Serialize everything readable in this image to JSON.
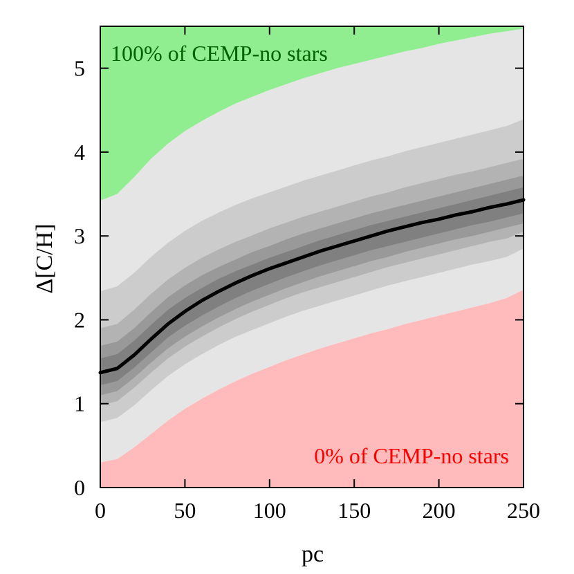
{
  "chart_data": {
    "type": "area",
    "xlabel": "pc",
    "ylabel": "Δ[C/H]",
    "xlim": [
      0,
      250
    ],
    "ylim": [
      0,
      5.5
    ],
    "xticks": [
      0,
      50,
      100,
      150,
      200,
      250
    ],
    "yticks": [
      0,
      1,
      2,
      3,
      4,
      5
    ],
    "grid": false,
    "annotations": {
      "top": "100% of CEMP-no stars",
      "bottom": "0% of CEMP-no stars"
    },
    "colors": {
      "top_region": "#90ee90",
      "bottom_region": "#ffbbbb",
      "top_text": "#006400",
      "bottom_text": "#ff0000",
      "bands": [
        "#e5e5e5",
        "#cccccc",
        "#b3b3b3",
        "#999999",
        "#808080"
      ],
      "median": "#000000"
    },
    "x": [
      0,
      10,
      20,
      30,
      40,
      50,
      60,
      70,
      80,
      90,
      100,
      110,
      120,
      130,
      140,
      150,
      160,
      170,
      180,
      190,
      200,
      210,
      220,
      230,
      240,
      250
    ],
    "median": [
      1.37,
      1.42,
      1.58,
      1.77,
      1.95,
      2.1,
      2.23,
      2.34,
      2.44,
      2.53,
      2.61,
      2.68,
      2.75,
      2.82,
      2.88,
      2.94,
      3.0,
      3.06,
      3.11,
      3.16,
      3.2,
      3.25,
      3.29,
      3.34,
      3.38,
      3.43
    ],
    "bands": [
      {
        "name": "outer",
        "lower": [
          0.3,
          0.34,
          0.48,
          0.64,
          0.8,
          0.94,
          1.06,
          1.17,
          1.27,
          1.36,
          1.44,
          1.52,
          1.59,
          1.66,
          1.72,
          1.78,
          1.84,
          1.89,
          1.95,
          2.0,
          2.05,
          2.1,
          2.15,
          2.2,
          2.26,
          2.36
        ],
        "upper": [
          3.42,
          3.5,
          3.7,
          3.92,
          4.1,
          4.25,
          4.37,
          4.48,
          4.58,
          4.66,
          4.74,
          4.81,
          4.88,
          4.94,
          5.0,
          5.05,
          5.1,
          5.15,
          5.2,
          5.24,
          5.29,
          5.33,
          5.37,
          5.41,
          5.44,
          5.47
        ]
      },
      {
        "name": "band2",
        "lower": [
          0.78,
          0.83,
          0.98,
          1.16,
          1.33,
          1.47,
          1.59,
          1.7,
          1.8,
          1.88,
          1.96,
          2.04,
          2.11,
          2.17,
          2.23,
          2.29,
          2.35,
          2.41,
          2.46,
          2.51,
          2.56,
          2.61,
          2.66,
          2.7,
          2.75,
          2.85
        ],
        "upper": [
          2.34,
          2.4,
          2.56,
          2.75,
          2.92,
          3.06,
          3.18,
          3.28,
          3.37,
          3.45,
          3.52,
          3.59,
          3.66,
          3.72,
          3.78,
          3.84,
          3.9,
          3.95,
          4.01,
          4.06,
          4.11,
          4.16,
          4.21,
          4.26,
          4.31,
          4.39
        ]
      },
      {
        "name": "band3",
        "lower": [
          0.98,
          1.03,
          1.19,
          1.37,
          1.54,
          1.68,
          1.8,
          1.91,
          2.01,
          2.1,
          2.18,
          2.26,
          2.33,
          2.39,
          2.45,
          2.51,
          2.57,
          2.63,
          2.68,
          2.73,
          2.78,
          2.83,
          2.88,
          2.93,
          2.97,
          3.05
        ],
        "upper": [
          1.9,
          1.95,
          2.12,
          2.31,
          2.48,
          2.62,
          2.74,
          2.84,
          2.93,
          3.01,
          3.09,
          3.16,
          3.23,
          3.29,
          3.35,
          3.41,
          3.47,
          3.52,
          3.58,
          3.63,
          3.68,
          3.73,
          3.77,
          3.82,
          3.87,
          3.92
        ]
      },
      {
        "name": "band4",
        "lower": [
          1.1,
          1.15,
          1.31,
          1.49,
          1.66,
          1.8,
          1.92,
          2.03,
          2.13,
          2.22,
          2.3,
          2.38,
          2.45,
          2.52,
          2.58,
          2.64,
          2.7,
          2.75,
          2.81,
          2.86,
          2.91,
          2.96,
          3.0,
          3.05,
          3.1,
          3.15
        ],
        "upper": [
          1.69,
          1.74,
          1.9,
          2.09,
          2.27,
          2.41,
          2.53,
          2.63,
          2.72,
          2.81,
          2.88,
          2.96,
          3.03,
          3.09,
          3.15,
          3.21,
          3.27,
          3.32,
          3.37,
          3.42,
          3.47,
          3.52,
          3.57,
          3.62,
          3.67,
          3.72
        ]
      },
      {
        "name": "inner",
        "lower": [
          1.22,
          1.27,
          1.43,
          1.61,
          1.79,
          1.93,
          2.05,
          2.16,
          2.26,
          2.35,
          2.43,
          2.51,
          2.58,
          2.65,
          2.71,
          2.77,
          2.83,
          2.88,
          2.93,
          2.98,
          3.03,
          3.08,
          3.13,
          3.17,
          3.22,
          3.27
        ],
        "upper": [
          1.54,
          1.59,
          1.75,
          1.94,
          2.12,
          2.26,
          2.38,
          2.49,
          2.58,
          2.66,
          2.74,
          2.81,
          2.88,
          2.95,
          3.01,
          3.07,
          3.13,
          3.18,
          3.23,
          3.28,
          3.33,
          3.38,
          3.43,
          3.48,
          3.53,
          3.58
        ]
      }
    ]
  }
}
